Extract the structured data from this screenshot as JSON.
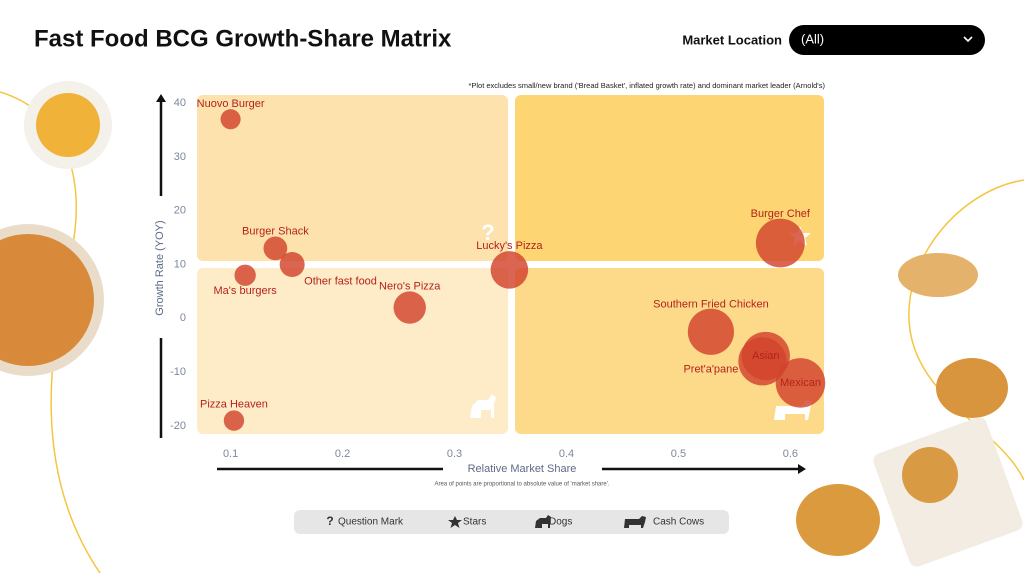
{
  "chart_data": {
    "type": "scatter",
    "title": "Fast Food BCG Growth-Share Matrix",
    "filter_label": "Market Location",
    "filter_value": "(All)",
    "note": "*Plot excludes small/new brand ('Bread Basket', inflated growth rate) and dominant market leader (Arnold's)",
    "ylabel": "Growth Rate (YOY)",
    "xlabel": "Relative Market Share",
    "footnote": "Area of points are proportional to absolute value of 'market share'.",
    "categories": [
      "Nuovo Burger",
      "Burger Shack",
      "Other fast food",
      "Ma's burgers",
      "Nero's Pizza",
      "Lucky's Pizza",
      "Pizza Heaven",
      "Burger Chef",
      "Southern Fried Chicken",
      "Asian",
      "Pret'a'pane",
      "Mexican"
    ],
    "x": [
      0.1,
      0.14,
      0.155,
      0.113,
      0.26,
      0.349,
      0.103,
      0.591,
      0.529,
      0.578,
      0.575,
      0.609
    ],
    "values": [
      37,
      13,
      10,
      8,
      2,
      9,
      -19,
      14,
      -2.5,
      -7,
      -8,
      -12
    ],
    "color": "#d2432c",
    "xlim": [
      0.07,
      0.63
    ],
    "ylim": [
      -21.5,
      41.5
    ],
    "xticks": [
      0.1,
      0.2,
      0.3,
      0.4,
      0.5,
      0.6
    ],
    "yticks": [
      40,
      30,
      20,
      10,
      0,
      -10,
      -20
    ],
    "legend": [
      "Question Mark",
      "Stars",
      "Dogs",
      "Cash Cows"
    ]
  }
}
